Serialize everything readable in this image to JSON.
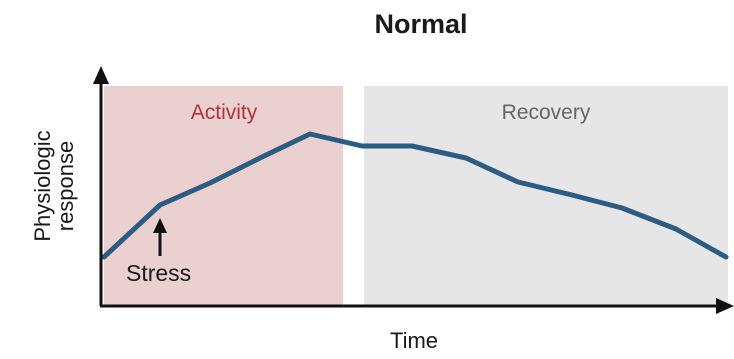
{
  "title": "Normal",
  "x_axis_label": "Time",
  "y_axis_label": [
    "Physiologic",
    "response"
  ],
  "regions": {
    "activity": {
      "label": "Activity",
      "fill": "#ebd0d0",
      "label_color": "#b0343a"
    },
    "recovery": {
      "label": "Recovery",
      "fill": "#e6e6e6",
      "label_color": "#666666"
    }
  },
  "annotation": {
    "label": "Stress"
  },
  "colors": {
    "curve": "#2a5c84",
    "axis": "#111111",
    "text": "#1a1a1a"
  },
  "icons": {
    "axis_arrowheads": "triangle-arrow-icon",
    "stress_marker": "up-arrow-icon"
  }
}
